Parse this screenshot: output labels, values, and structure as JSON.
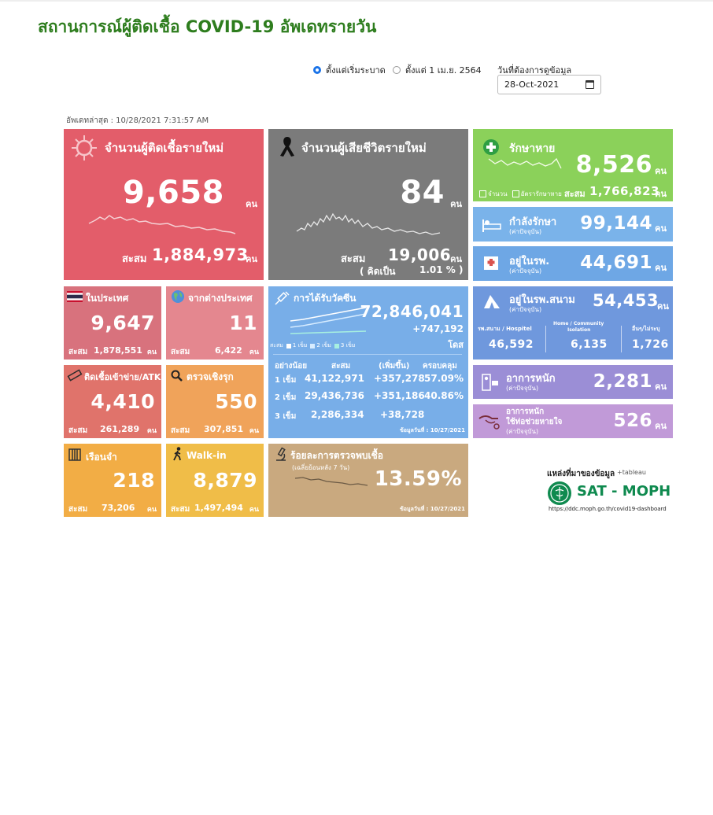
{
  "page_title": "สถานการณ์ผู้ติดเชื้อ COVID-19 อัพเดทรายวัน",
  "controls": {
    "radio_since_start": "ตั้งแต่เริ่มระบาด",
    "radio_since_date": "ตั้งแต่ 1 เม.ย. 2564",
    "date_label": "วันที่ต้องการดูข้อมูล",
    "date_value": "28-Oct-2021"
  },
  "updated": "อัพเดทล่าสุด : 10/28/2021 7:31:57 AM",
  "unit": "คน",
  "cumulative_label": "สะสม",
  "new_cases": {
    "title": "จำนวนผู้ติดเชื้อรายใหม่",
    "value": "9,658",
    "cumulative": "1,884,973"
  },
  "new_deaths": {
    "title": "จำนวนผู้เสียชีวิตรายใหม่",
    "value": "84",
    "cumulative": "19,006",
    "rate_label": "( คิดเป็น",
    "rate_value": "1.01 % )"
  },
  "recovered": {
    "title": "รักษาหาย",
    "value": "8,526",
    "cumulative": "1,766,823",
    "legend_count": "จำนวน",
    "legend_rate": "อัตรารักษาหาย"
  },
  "treating": {
    "title": "กำลังรักษา",
    "sub": "(ค่าปัจจุบัน)",
    "value": "99,144"
  },
  "in_hospital": {
    "title": "อยู่ในรพ.",
    "sub": "(ค่าปัจจุบัน)",
    "value": "44,691"
  },
  "field_hospital": {
    "title": "อยู่ในรพ.สนาม",
    "sub": "(ค่าปัจจุบัน)",
    "value": "54,453",
    "cols": [
      {
        "label": "รพ.สนาม / Hospitel",
        "value": "46,592"
      },
      {
        "label1": "Home / Community",
        "label2": "Isolation",
        "value": "6,135"
      },
      {
        "label": "อื่นๆ/ไม่ระบุ",
        "value": "1,726"
      }
    ]
  },
  "severe": {
    "title": "อาการหนัก",
    "sub": "(ค่าปัจจุบัน)",
    "value": "2,281"
  },
  "ventilator": {
    "title1": "อาการหนัก",
    "title2": "ใช้ท่อช่วยหายใจ",
    "sub": "(ค่าปัจจุบัน)",
    "value": "526"
  },
  "domestic": {
    "title": "ในประเทศ",
    "value": "9,647",
    "cumulative": "1,878,551"
  },
  "imported": {
    "title": "จากต่างประเทศ",
    "value": "11",
    "cumulative": "6,422"
  },
  "prison": {
    "title": "ติดเชื้อเข้าข่าย/ATK",
    "value": "4,410",
    "cumulative": "261,289"
  },
  "proactive": {
    "title": "ตรวจเชิงรุก",
    "value": "550",
    "cumulative": "307,851"
  },
  "jail": {
    "title": "เรือนจำ",
    "value": "218",
    "cumulative": "73,206"
  },
  "walkin": {
    "title": "Walk-in",
    "value": "8,879",
    "cumulative": "1,497,494"
  },
  "vaccine": {
    "title": "การได้รับวัคซีน",
    "total": "72,846,041",
    "increase": "+747,192",
    "dose_unit": "โดส",
    "legend": {
      "cum": "สะสม",
      "d1": "1 เข็ม",
      "d2": "2 เข็ม",
      "d3": "3 เข็ม"
    },
    "headers": {
      "min": "อย่างน้อย",
      "cum": "สะสม",
      "add": "(เพิ่มขึ้น)",
      "cover": "ครอบคลุม"
    },
    "rows": [
      {
        "dose": "1 เข็ม",
        "cum": "41,122,971",
        "add": "+357,278",
        "cover": "57.09%"
      },
      {
        "dose": "2 เข็ม",
        "cum": "29,436,736",
        "add": "+351,186",
        "cover": "40.86%"
      },
      {
        "dose": "3 เข็ม",
        "cum": "2,286,334",
        "add": "+38,728",
        "cover": ""
      }
    ],
    "data_date": "ข้อมูลวันที่ : 10/27/2021"
  },
  "positivity": {
    "title": "ร้อยละการตรวจพบเชื้อ",
    "sub": "(เฉลี่ยย้อนหลัง 7 วัน)",
    "value": "13.59%",
    "data_date": "ข้อมูลวันที่ : 10/27/2021"
  },
  "source": {
    "label": "แหล่งที่มาของข้อมูล",
    "tableau": "+tableau",
    "org": "SAT - MOPH",
    "url": "https://ddc.moph.go.th/covid19-dashboard"
  },
  "colors": {
    "title_green": "#2e7d1e",
    "cases_red": "#e35d6a",
    "deaths_gray": "#7b7b7b",
    "recover_green": "#8bd15a",
    "accent_blue": "#1a73e8"
  }
}
